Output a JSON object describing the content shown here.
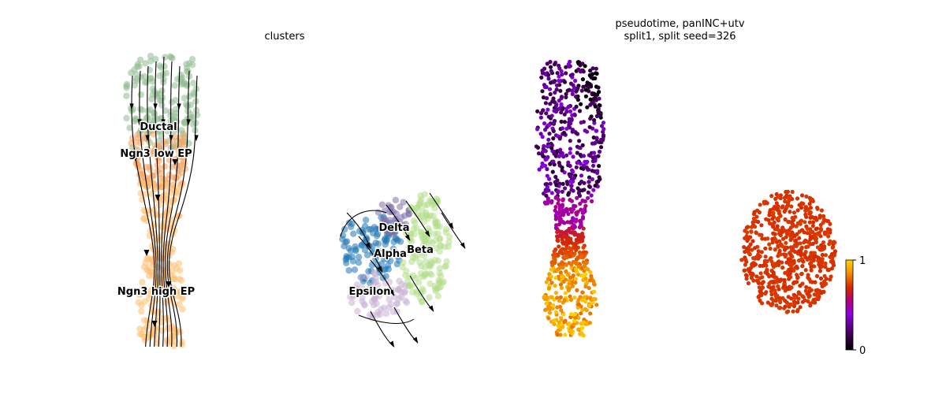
{
  "chart_data": [
    {
      "type": "scatter",
      "title": "clusters",
      "clusters": [
        {
          "name": "Ductal",
          "color": "#8fbc8f"
        },
        {
          "name": "Ngn3 low EP",
          "color": "#f4a460"
        },
        {
          "name": "Ngn3 high EP",
          "color": "#fdbf6f"
        },
        {
          "name": "Delta",
          "color": "#8073ac"
        },
        {
          "name": "Alpha",
          "color": "#1f77b4"
        },
        {
          "name": "Beta",
          "color": "#b2df8a"
        },
        {
          "name": "Epsilon",
          "color": "#cab2d6"
        }
      ],
      "streamlines": true,
      "grid": false
    },
    {
      "type": "scatter",
      "title_lines": [
        "pseudotime, panINC+utv",
        "split1, split seed=326"
      ],
      "colorbar": {
        "min": 0,
        "max": 1,
        "tick_labels": [
          "1",
          "0"
        ],
        "colormap": "gnuplot"
      },
      "grid": false
    }
  ]
}
